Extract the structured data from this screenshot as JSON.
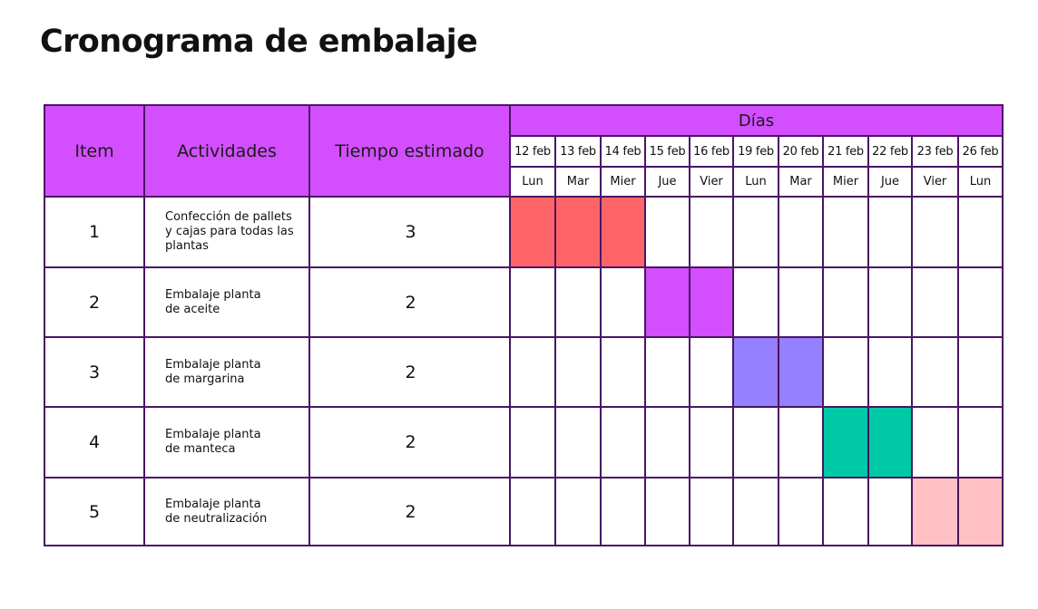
{
  "title": "Cronograma de embalaje",
  "headers": {
    "item": "Item",
    "activities": "Actividades",
    "time": "Tiempo estimado",
    "days": "Días"
  },
  "dates": [
    "12 feb",
    "13 feb",
    "14 feb",
    "15 feb",
    "16 feb",
    "19 feb",
    "20 feb",
    "21 feb",
    "22 feb",
    "23 feb",
    "26 feb"
  ],
  "weekdays": [
    "Lun",
    "Mar",
    "Mier",
    "Jue",
    "Vier",
    "Lun",
    "Mar",
    "Mier",
    "Jue",
    "Vier",
    "Lun"
  ],
  "rows": [
    {
      "item": "1",
      "activity_lines": [
        "Confección de pallets",
        "y cajas para todas las",
        "plantas"
      ],
      "time": "3",
      "start_day": 0,
      "duration": 3,
      "color": "#ff6469"
    },
    {
      "item": "2",
      "activity_lines": [
        "Embalaje planta",
        "de aceite"
      ],
      "time": "2",
      "start_day": 3,
      "duration": 2,
      "color": "#d34ffd"
    },
    {
      "item": "3",
      "activity_lines": [
        "Embalaje planta",
        "de margarina"
      ],
      "time": "2",
      "start_day": 5,
      "duration": 2,
      "color": "#9580ff"
    },
    {
      "item": "4",
      "activity_lines": [
        "Embalaje planta",
        "de manteca"
      ],
      "time": "2",
      "start_day": 7,
      "duration": 2,
      "color": "#00c9a7"
    },
    {
      "item": "5",
      "activity_lines": [
        "Embalaje planta",
        "de neutralización"
      ],
      "time": "2",
      "start_day": 9,
      "duration": 2,
      "color": "#ffc1c3"
    }
  ],
  "colors": {
    "header_bg": "#d34ffd",
    "border": "#4a1463"
  }
}
